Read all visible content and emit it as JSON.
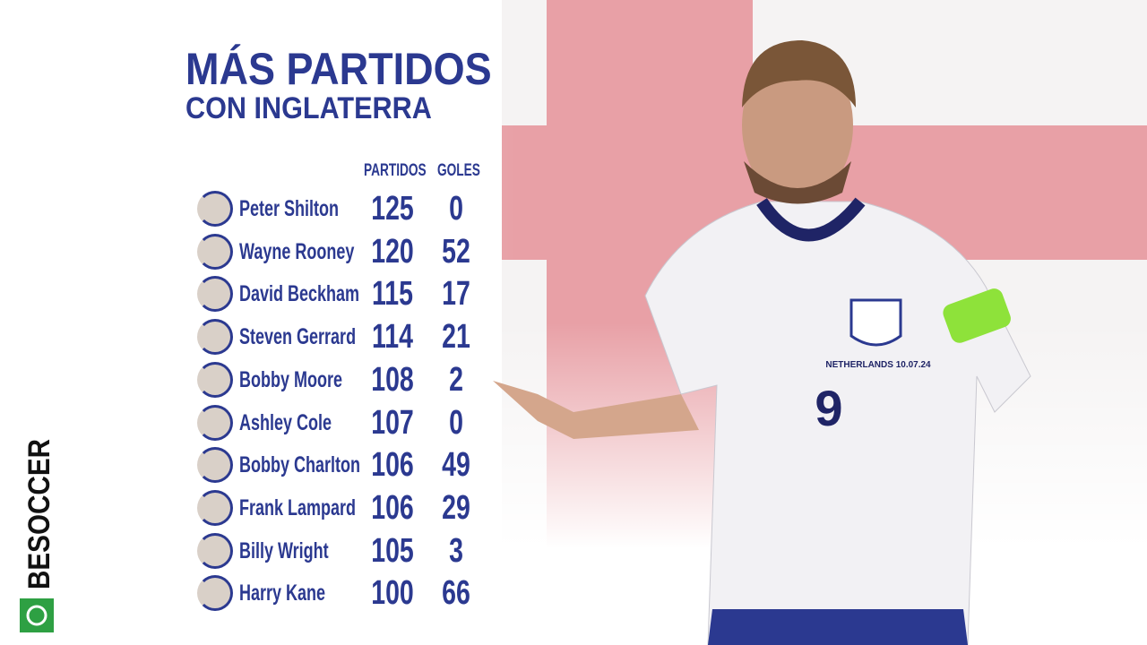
{
  "header": {
    "title": "MÁS PARTIDOS",
    "subtitle": "CON INGLATERRA"
  },
  "table": {
    "columns": [
      "PARTIDOS",
      "GOLES"
    ],
    "rows": [
      [
        "Peter Shilton",
        "125",
        "0"
      ],
      [
        "Wayne Rooney",
        "120",
        "52"
      ],
      [
        "David Beckham",
        "115",
        "17"
      ],
      [
        "Steven Gerrard",
        "114",
        "21"
      ],
      [
        "Bobby Moore",
        "108",
        "2"
      ],
      [
        "Ashley Cole",
        "107",
        "0"
      ],
      [
        "Bobby Charlton",
        "106",
        "49"
      ],
      [
        "Frank Lampard",
        "106",
        "29"
      ],
      [
        "Billy Wright",
        "105",
        "3"
      ],
      [
        "Harry Kane",
        "100",
        "66"
      ]
    ]
  },
  "shirt": {
    "number": "9",
    "match": "NETHERLANDS 10.07.24"
  },
  "brand": "BESOCCER"
}
